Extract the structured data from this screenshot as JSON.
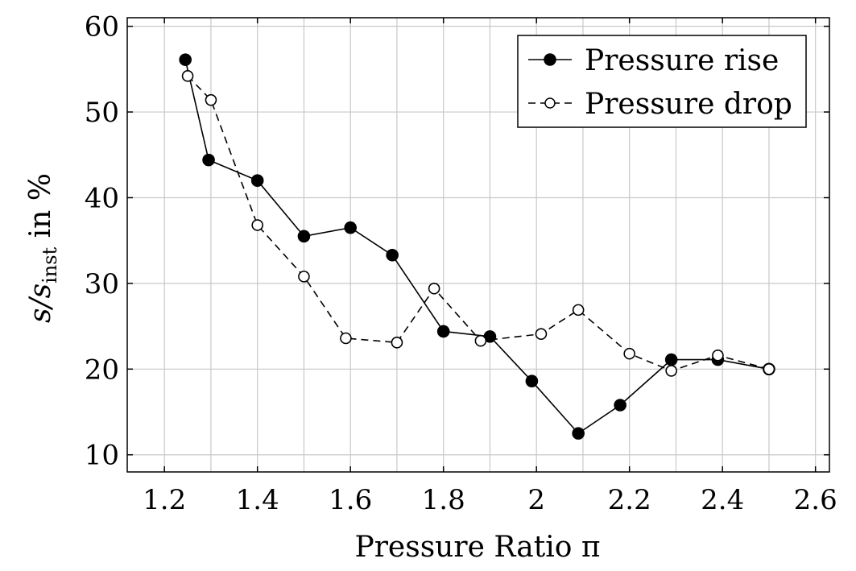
{
  "chart_data": {
    "type": "line",
    "xlabel": "Pressure Ratio π",
    "ylabel": "s/s_inst in %",
    "ylabel_main": "s/s",
    "ylabel_sub": "inst",
    "ylabel_suffix": " in %",
    "xlim": [
      1.12,
      2.63
    ],
    "ylim": [
      8,
      61
    ],
    "xticks": [
      1.2,
      1.4,
      1.6,
      1.8,
      2,
      2.2,
      2.4,
      2.6
    ],
    "xtick_labels": [
      "1.2",
      "1.4",
      "1.6",
      "1.8",
      "2",
      "2.2",
      "2.4",
      "2.6"
    ],
    "xgrid": [
      1.2,
      1.3,
      1.4,
      1.5,
      1.6,
      1.7,
      1.8,
      1.9,
      2.0,
      2.1,
      2.2,
      2.3,
      2.4,
      2.5,
      2.6
    ],
    "yticks": [
      10,
      20,
      30,
      40,
      50,
      60
    ],
    "ytick_labels": [
      "10",
      "20",
      "30",
      "40",
      "50",
      "60"
    ],
    "grid": true,
    "legend_position": "top-right",
    "series": [
      {
        "name": "Pressure rise",
        "marker": "filled-circle",
        "line": "solid",
        "color": "#000000",
        "x": [
          1.245,
          1.295,
          1.4,
          1.5,
          1.6,
          1.69,
          1.8,
          1.9,
          1.99,
          2.09,
          2.18,
          2.29,
          2.39,
          2.5
        ],
        "y": [
          56.1,
          44.4,
          42.0,
          35.5,
          36.5,
          33.3,
          24.4,
          23.8,
          18.6,
          12.5,
          15.8,
          21.1,
          21.1,
          20.0
        ]
      },
      {
        "name": "Pressure drop",
        "marker": "open-circle",
        "line": "dashed",
        "color": "#000000",
        "x": [
          1.25,
          1.3,
          1.4,
          1.5,
          1.59,
          1.7,
          1.78,
          1.88,
          2.01,
          2.09,
          2.2,
          2.29,
          2.39,
          2.5
        ],
        "y": [
          54.2,
          51.4,
          36.8,
          30.8,
          23.6,
          23.1,
          29.4,
          23.3,
          24.1,
          26.9,
          21.8,
          19.8,
          21.6,
          20.0
        ]
      }
    ]
  }
}
